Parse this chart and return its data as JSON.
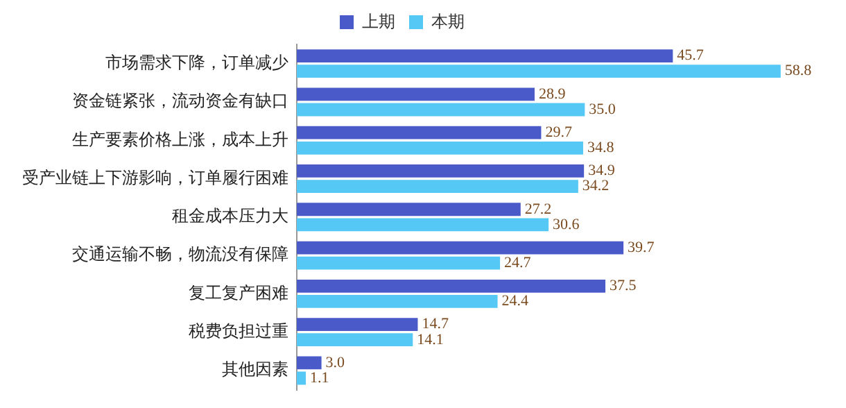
{
  "chart_data": {
    "type": "bar",
    "orientation": "horizontal",
    "legend": "top",
    "categories": [
      "市场需求下降，订单减少",
      "资金链紧张，流动资金有缺口",
      "生产要素价格上涨，成本上升",
      "受产业链上下游影响，订单履行困难",
      "租金成本压力大",
      "交通运输不畅，物流没有保障",
      "复工复产困难",
      "税费负担过重",
      "其他因素"
    ],
    "series": [
      {
        "name": "上期",
        "color": "#4a5ac8",
        "values": [
          45.7,
          28.9,
          29.7,
          34.9,
          27.2,
          39.7,
          37.5,
          14.7,
          3.0
        ],
        "value_labels": [
          "45.7",
          "28.9",
          "29.7",
          "34.9",
          "27.2",
          "39.7",
          "37.5",
          "14.7",
          "3.0"
        ]
      },
      {
        "name": "本期",
        "color": "#55c8f5",
        "values": [
          58.8,
          35.0,
          34.8,
          34.2,
          30.6,
          24.7,
          24.4,
          14.1,
          1.1
        ],
        "value_labels": [
          "58.8",
          "35.0",
          "34.8",
          "34.2",
          "30.6",
          "24.7",
          "24.4",
          "14.1",
          "1.1"
        ]
      }
    ]
  }
}
